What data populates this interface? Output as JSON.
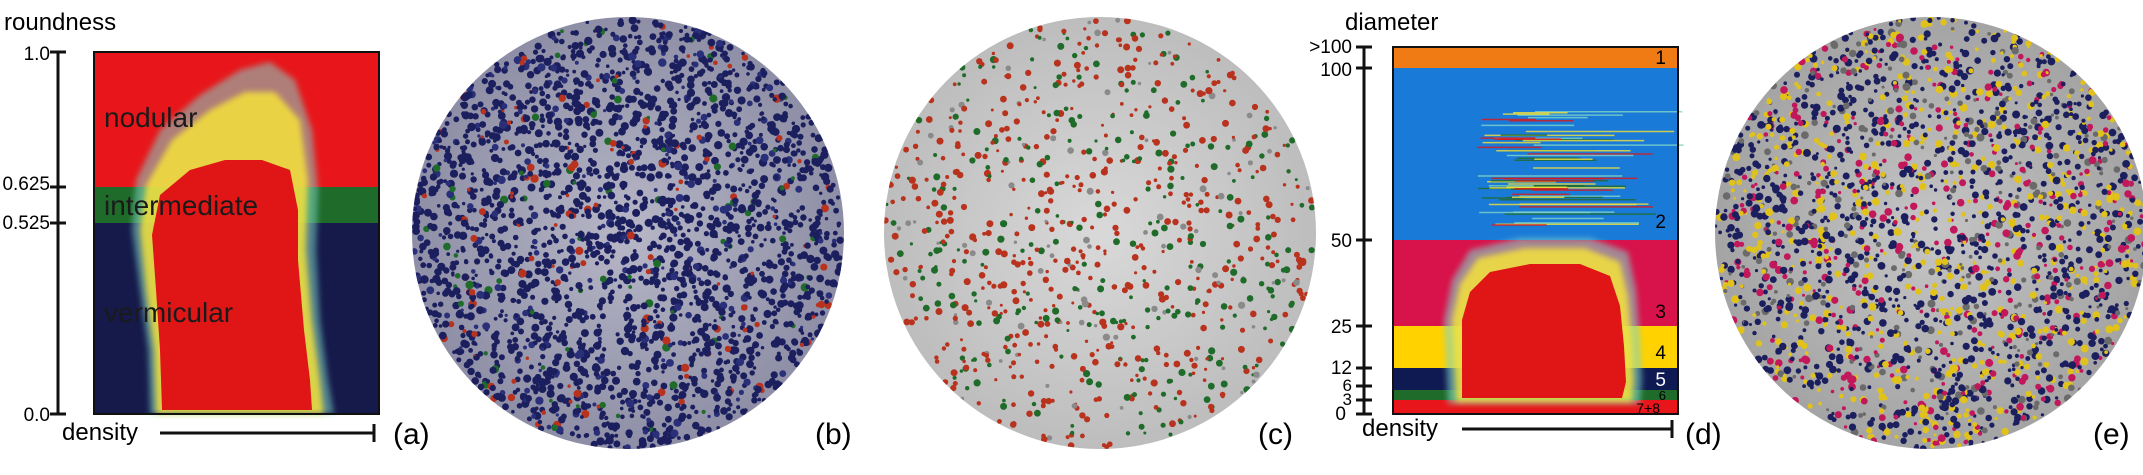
{
  "panel_a": {
    "y_title": "roundness",
    "x_title": "density",
    "ticks": [
      "1.0",
      "0.625",
      "0.525",
      "0.0"
    ],
    "regions": [
      "nodular",
      "intermediate",
      "vermicular"
    ],
    "label": "(a)",
    "colors": {
      "nodular": "#e8161a",
      "intermediate": "#1f6b2a",
      "vermicular": "#151a4a",
      "density": "#e01616"
    }
  },
  "panel_b": {
    "label": "(b)"
  },
  "panel_c": {
    "label": "(c)"
  },
  "panel_d": {
    "y_title": "diameter",
    "x_title": "density",
    "ticks": [
      ">100",
      "100",
      "50",
      "25",
      "12",
      "6",
      "3",
      "0"
    ],
    "band_labels": [
      "1",
      "2",
      "3",
      "4",
      "5",
      "6",
      "7+8"
    ],
    "label": "(d)",
    "colors": {
      "band1": "#f07a14",
      "band2": "#1a7ad8",
      "band3": "#d8124a",
      "band4": "#ffd200",
      "band5": "#101a52",
      "band6": "#1f6b2a",
      "band78": "#e8161a"
    }
  },
  "panel_e": {
    "label": "(e)"
  }
}
